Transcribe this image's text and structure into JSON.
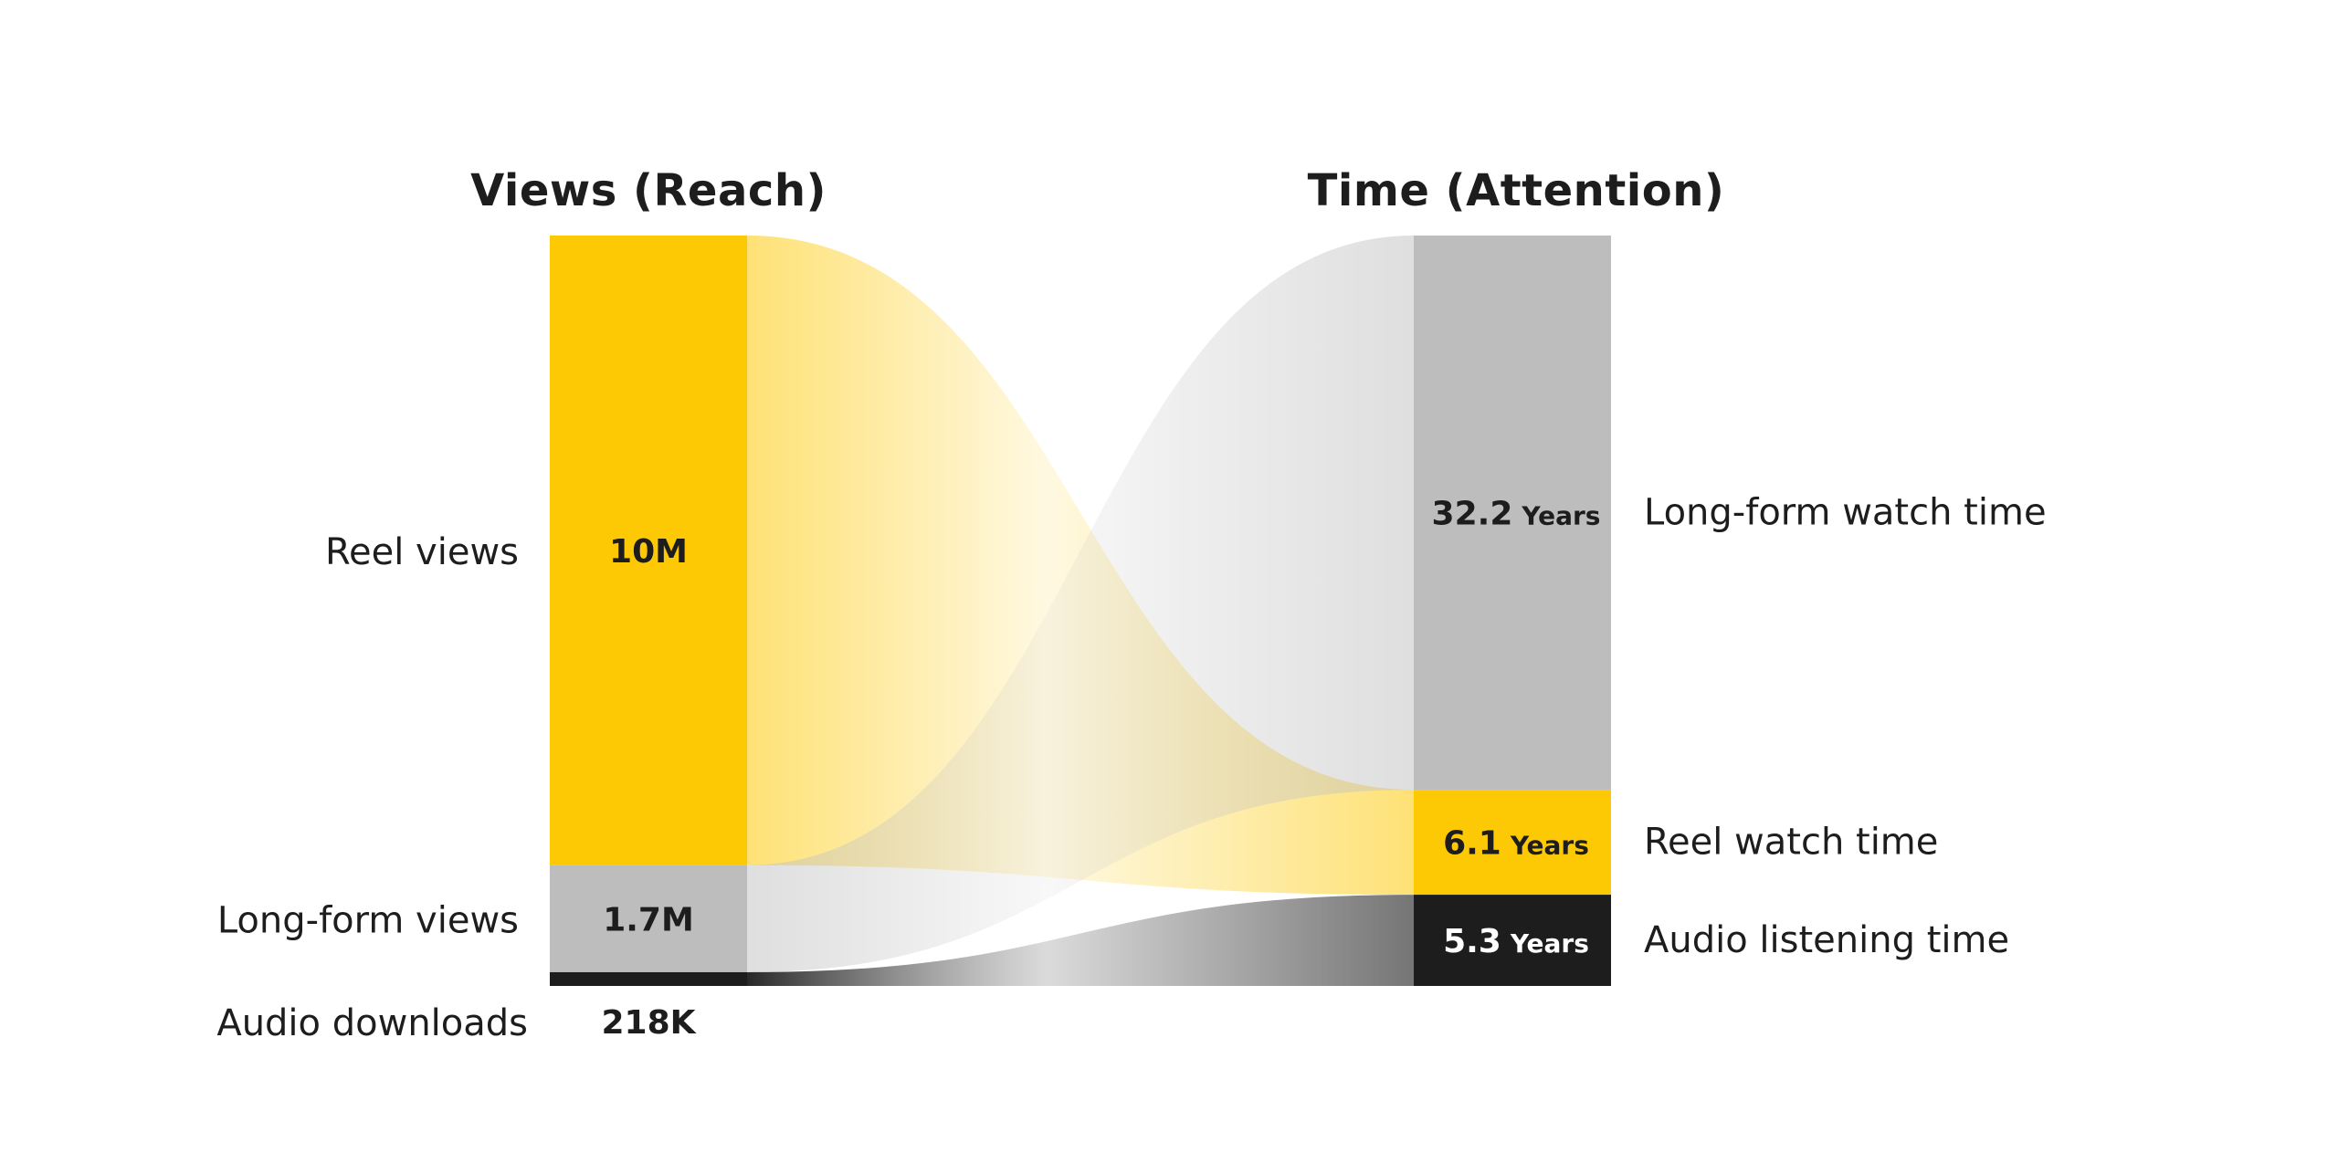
{
  "chart_data": {
    "type": "sankey",
    "left_title": "Views (Reach)",
    "right_title": "Time (Attention)",
    "left_nodes": [
      {
        "label": "Reel views",
        "value_label": "10M",
        "value": 10000000,
        "color": "#fdc905",
        "text_color": "#1d1d1d"
      },
      {
        "label": "Long-form views",
        "value_label": "1.7M",
        "value": 1700000,
        "color": "#bdbdbd",
        "text_color": "#1d1d1d"
      },
      {
        "label": "Audio downloads",
        "value_label": "218K",
        "value": 218000,
        "color": "#1d1d1d",
        "text_color": "#1d1d1d"
      }
    ],
    "right_nodes": [
      {
        "label": "Long-form watch time",
        "value_label": "32.2",
        "unit": "Years",
        "value": 32.2,
        "color": "#bdbdbd",
        "text_color": "#1d1d1d"
      },
      {
        "label": "Reel watch time",
        "value_label": "6.1",
        "unit": "Years",
        "value": 6.1,
        "color": "#fdc905",
        "text_color": "#1d1d1d"
      },
      {
        "label": "Audio listening time",
        "value_label": "5.3",
        "unit": "Years",
        "value": 5.3,
        "color": "#1d1d1d",
        "text_color": "#ffffff"
      }
    ],
    "flows": [
      {
        "from": 0,
        "to": 1,
        "color": "#fdc905",
        "color_end": "#fdc905"
      },
      {
        "from": 1,
        "to": 0,
        "color": "#c4c4c4",
        "color_end": "#c4c4c4"
      },
      {
        "from": 2,
        "to": 2,
        "color": "#1d1d1d",
        "color_end": "#6e6e6e"
      }
    ]
  }
}
